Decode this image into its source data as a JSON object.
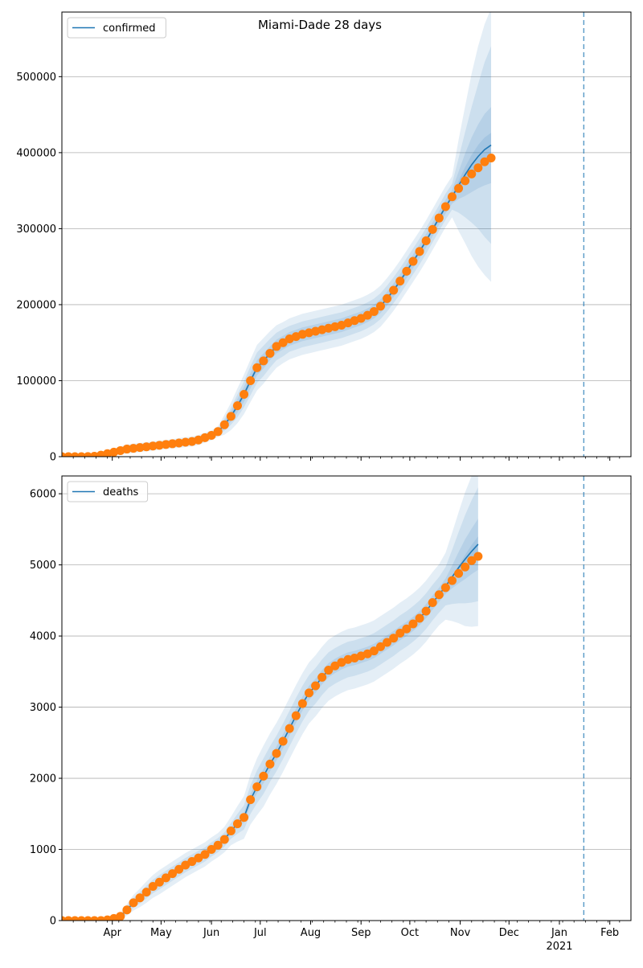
{
  "figure": {
    "title": "Miami-Dade 28 days"
  },
  "chart_data": [
    {
      "type": "line",
      "legend": "confirmed",
      "legend_position": "top-left",
      "grid": "horizontal",
      "ylim": [
        0,
        585000
      ],
      "yticks": [
        0,
        100000,
        200000,
        300000,
        400000,
        500000
      ],
      "ytick_labels": [
        "0",
        "100000",
        "200000",
        "300000",
        "400000",
        "500000"
      ],
      "vline_date": "2021-01-16",
      "observed": {
        "start": "2020-03-01",
        "step_days": 4,
        "values": [
          0,
          0,
          0,
          0,
          100,
          500,
          2000,
          4000,
          6000,
          8000,
          10000,
          11000,
          12000,
          13000,
          14000,
          15000,
          16000,
          17000,
          18000,
          19000,
          20000,
          22000,
          25000,
          28000,
          33000,
          42000,
          53000,
          67000,
          82000,
          100000,
          117000,
          126000,
          136000,
          145000,
          150000,
          155000,
          158000,
          161000,
          163000,
          165000,
          167000,
          169000,
          171000,
          173000,
          176000,
          179000,
          182000,
          186000,
          191000,
          198000,
          208000,
          219000,
          231000,
          244000,
          257000,
          270000,
          284000,
          299000,
          314000,
          329000,
          342000,
          353000,
          363000,
          372000,
          380000,
          388000,
          393000
        ]
      },
      "fit": {
        "start": "2020-03-01",
        "step_days": 4,
        "values": [
          0,
          0,
          0,
          0,
          100,
          500,
          2000,
          4000,
          6000,
          8000,
          10000,
          11000,
          12000,
          13000,
          14000,
          15000,
          16000,
          17000,
          18000,
          19000,
          20000,
          22000,
          25000,
          28000,
          33000,
          42000,
          53000,
          67000,
          82000,
          100000,
          117000,
          126000,
          136000,
          145000,
          150000,
          155000,
          158000,
          161000,
          163000,
          165000,
          167000,
          169000,
          171000,
          173000,
          176000,
          179000,
          182000,
          186000,
          191000,
          198000,
          208000,
          219000,
          231000,
          244000,
          257000,
          270000,
          284000,
          299000,
          314000,
          329000,
          342000,
          357000,
          371000,
          384000,
          395000,
          404000,
          410000
        ]
      },
      "intervals": {
        "start": "2020-03-01",
        "step_days": 4,
        "widths": [
          [
            0,
            0,
            0,
            0,
            0,
            0,
            0,
            0,
            0,
            0,
            0,
            0,
            0,
            0,
            0,
            0,
            0,
            0,
            0,
            0,
            0,
            0,
            0,
            0,
            500,
            2000,
            3000,
            4000,
            4000,
            4000,
            4000,
            3000,
            3000,
            3000,
            3000,
            3000,
            3000,
            3000,
            3000,
            3000,
            3000,
            3000,
            3000,
            3000,
            3000,
            3000,
            3000,
            3000,
            3000,
            3000,
            3000,
            3000,
            3000,
            3000,
            3000,
            3000,
            3000,
            3000,
            3000,
            3000,
            3000,
            6000,
            10000,
            13000,
            15000,
            16000,
            16000
          ],
          [
            0,
            0,
            0,
            0,
            0,
            0,
            0,
            0,
            500,
            1000,
            1500,
            1500,
            1500,
            1500,
            1500,
            1500,
            1500,
            1500,
            2000,
            2000,
            2000,
            2000,
            2000,
            2000,
            2500,
            5000,
            7000,
            9000,
            10000,
            10000,
            10000,
            10000,
            9000,
            9000,
            9000,
            9000,
            9000,
            9000,
            9000,
            9000,
            9000,
            9000,
            9000,
            9000,
            9000,
            9000,
            9000,
            9000,
            9000,
            9000,
            9000,
            9000,
            9000,
            9000,
            9000,
            9000,
            9000,
            9000,
            9000,
            9000,
            9000,
            18000,
            28000,
            36000,
            42000,
            47000,
            50000
          ],
          [
            0,
            0,
            0,
            0,
            0,
            500,
            1000,
            1500,
            2000,
            2500,
            3000,
            3000,
            3000,
            3000,
            3000,
            3000,
            3000,
            3000,
            3500,
            3500,
            3500,
            3500,
            3500,
            3500,
            4000,
            8000,
            11000,
            15000,
            17000,
            19000,
            20000,
            20000,
            19000,
            18000,
            18000,
            17000,
            17000,
            17000,
            17000,
            17000,
            17000,
            17000,
            17000,
            17000,
            17000,
            17000,
            17000,
            17000,
            17000,
            17000,
            17000,
            17000,
            17000,
            17000,
            17000,
            17000,
            17000,
            17000,
            17000,
            17000,
            17000,
            36000,
            56000,
            76000,
            95000,
            115000,
            130000
          ],
          [
            0,
            0,
            0,
            0,
            0,
            1000,
            2000,
            3000,
            4000,
            5000,
            6000,
            6000,
            6000,
            6000,
            6000,
            6000,
            6000,
            6000,
            6500,
            6500,
            6500,
            6500,
            6500,
            6500,
            7000,
            13000,
            18000,
            23000,
            26000,
            28000,
            30000,
            30000,
            29000,
            28000,
            27000,
            27000,
            27000,
            27000,
            27000,
            27000,
            27000,
            27000,
            27000,
            27000,
            27000,
            27000,
            27000,
            27000,
            27000,
            27000,
            27000,
            27000,
            27000,
            27000,
            27000,
            27000,
            27000,
            27000,
            27000,
            27000,
            27000,
            60000,
            90000,
            120000,
            145000,
            165000,
            180000
          ]
        ]
      }
    },
    {
      "type": "line",
      "legend": "deaths",
      "legend_position": "top-left",
      "grid": "horizontal",
      "ylim": [
        0,
        6250
      ],
      "yticks": [
        0,
        1000,
        2000,
        3000,
        4000,
        5000,
        6000
      ],
      "ytick_labels": [
        "0",
        "1000",
        "2000",
        "3000",
        "4000",
        "5000",
        "6000"
      ],
      "vline_date": "2021-01-16",
      "observed": {
        "start": "2020-03-01",
        "step_days": 4,
        "values": [
          0,
          0,
          0,
          0,
          0,
          0,
          0,
          10,
          30,
          60,
          150,
          250,
          320,
          400,
          480,
          540,
          600,
          660,
          720,
          780,
          830,
          880,
          930,
          1000,
          1060,
          1140,
          1260,
          1360,
          1450,
          1700,
          1880,
          2030,
          2200,
          2350,
          2520,
          2700,
          2880,
          3050,
          3200,
          3300,
          3420,
          3520,
          3580,
          3630,
          3670,
          3690,
          3720,
          3750,
          3790,
          3850,
          3910,
          3970,
          4040,
          4100,
          4170,
          4250,
          4350,
          4470,
          4580,
          4680,
          4780,
          4880,
          4970,
          5060,
          5120
        ]
      },
      "fit": {
        "start": "2020-03-01",
        "step_days": 4,
        "values": [
          0,
          0,
          0,
          0,
          0,
          0,
          0,
          10,
          30,
          60,
          150,
          250,
          320,
          400,
          480,
          540,
          600,
          660,
          720,
          780,
          830,
          880,
          930,
          1000,
          1060,
          1140,
          1260,
          1360,
          1450,
          1700,
          1880,
          2030,
          2200,
          2350,
          2520,
          2700,
          2880,
          3050,
          3200,
          3300,
          3420,
          3520,
          3580,
          3630,
          3670,
          3690,
          3720,
          3750,
          3790,
          3850,
          3910,
          3970,
          4040,
          4100,
          4170,
          4250,
          4350,
          4470,
          4580,
          4700,
          4830,
          4960,
          5080,
          5190,
          5290
        ]
      },
      "intervals": {
        "start": "2020-03-01",
        "step_days": 4,
        "widths": [
          [
            0,
            0,
            0,
            0,
            0,
            0,
            0,
            0,
            0,
            0,
            0,
            0,
            0,
            0,
            0,
            0,
            0,
            0,
            0,
            0,
            0,
            0,
            0,
            0,
            0,
            0,
            0,
            0,
            0,
            0,
            0,
            0,
            0,
            0,
            0,
            0,
            0,
            0,
            0,
            0,
            0,
            0,
            0,
            0,
            0,
            0,
            0,
            0,
            0,
            0,
            0,
            0,
            0,
            0,
            0,
            0,
            0,
            0,
            0,
            0,
            0,
            30,
            60,
            90,
            110
          ],
          [
            0,
            0,
            0,
            0,
            0,
            0,
            0,
            0,
            5,
            10,
            20,
            30,
            40,
            40,
            40,
            40,
            40,
            45,
            45,
            45,
            45,
            45,
            45,
            45,
            45,
            45,
            50,
            60,
            70,
            80,
            90,
            100,
            100,
            100,
            100,
            100,
            100,
            100,
            100,
            100,
            100,
            100,
            100,
            100,
            100,
            100,
            100,
            100,
            100,
            100,
            100,
            100,
            100,
            100,
            100,
            100,
            100,
            100,
            100,
            110,
            160,
            220,
            280,
            320,
            360
          ],
          [
            0,
            0,
            0,
            0,
            0,
            0,
            0,
            0,
            10,
            25,
            50,
            70,
            80,
            90,
            95,
            100,
            100,
            100,
            100,
            100,
            100,
            100,
            100,
            100,
            100,
            100,
            110,
            140,
            170,
            200,
            230,
            250,
            250,
            250,
            250,
            250,
            250,
            250,
            250,
            250,
            250,
            250,
            250,
            250,
            250,
            250,
            250,
            250,
            250,
            250,
            250,
            250,
            250,
            250,
            250,
            250,
            250,
            250,
            250,
            270,
            380,
            500,
            620,
            720,
            800
          ],
          [
            0,
            0,
            0,
            0,
            0,
            0,
            0,
            0,
            20,
            40,
            80,
            110,
            130,
            150,
            160,
            170,
            170,
            170,
            170,
            170,
            170,
            170,
            170,
            170,
            170,
            180,
            200,
            250,
            300,
            350,
            400,
            430,
            430,
            430,
            430,
            430,
            430,
            430,
            430,
            430,
            430,
            430,
            430,
            430,
            430,
            430,
            430,
            430,
            430,
            430,
            430,
            430,
            430,
            430,
            430,
            430,
            430,
            430,
            430,
            470,
            620,
            780,
            940,
            1060,
            1150
          ]
        ]
      }
    }
  ],
  "x_axis": {
    "range": [
      "2020-03-01",
      "2021-02-14"
    ],
    "month_ticks": [
      {
        "date": "2020-04-01",
        "label": "Apr"
      },
      {
        "date": "2020-05-01",
        "label": "May"
      },
      {
        "date": "2020-06-01",
        "label": "Jun"
      },
      {
        "date": "2020-07-01",
        "label": "Jul"
      },
      {
        "date": "2020-08-01",
        "label": "Aug"
      },
      {
        "date": "2020-09-01",
        "label": "Sep"
      },
      {
        "date": "2020-10-01",
        "label": "Oct"
      },
      {
        "date": "2020-11-01",
        "label": "Nov"
      },
      {
        "date": "2020-12-01",
        "label": "Dec"
      },
      {
        "date": "2021-01-01",
        "label": "Jan"
      },
      {
        "date": "2021-02-01",
        "label": "Feb"
      }
    ],
    "year_label": {
      "date": "2021-01-01",
      "label": "2021"
    }
  },
  "colors": {
    "fit": "#1f77b4",
    "observed": "#ff7f0e",
    "band": "#1f77b4",
    "grid": "#b0b0b0",
    "axis": "#000000"
  }
}
